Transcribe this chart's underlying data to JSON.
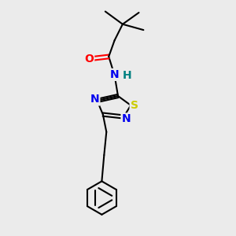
{
  "background_color": "#ebebeb",
  "bond_color": "#000000",
  "atom_colors": {
    "O": "#ff0000",
    "N": "#0000ee",
    "S": "#cccc00",
    "H": "#008080",
    "C": "#000000"
  },
  "figsize": [
    3.0,
    3.0
  ],
  "dpi": 100
}
